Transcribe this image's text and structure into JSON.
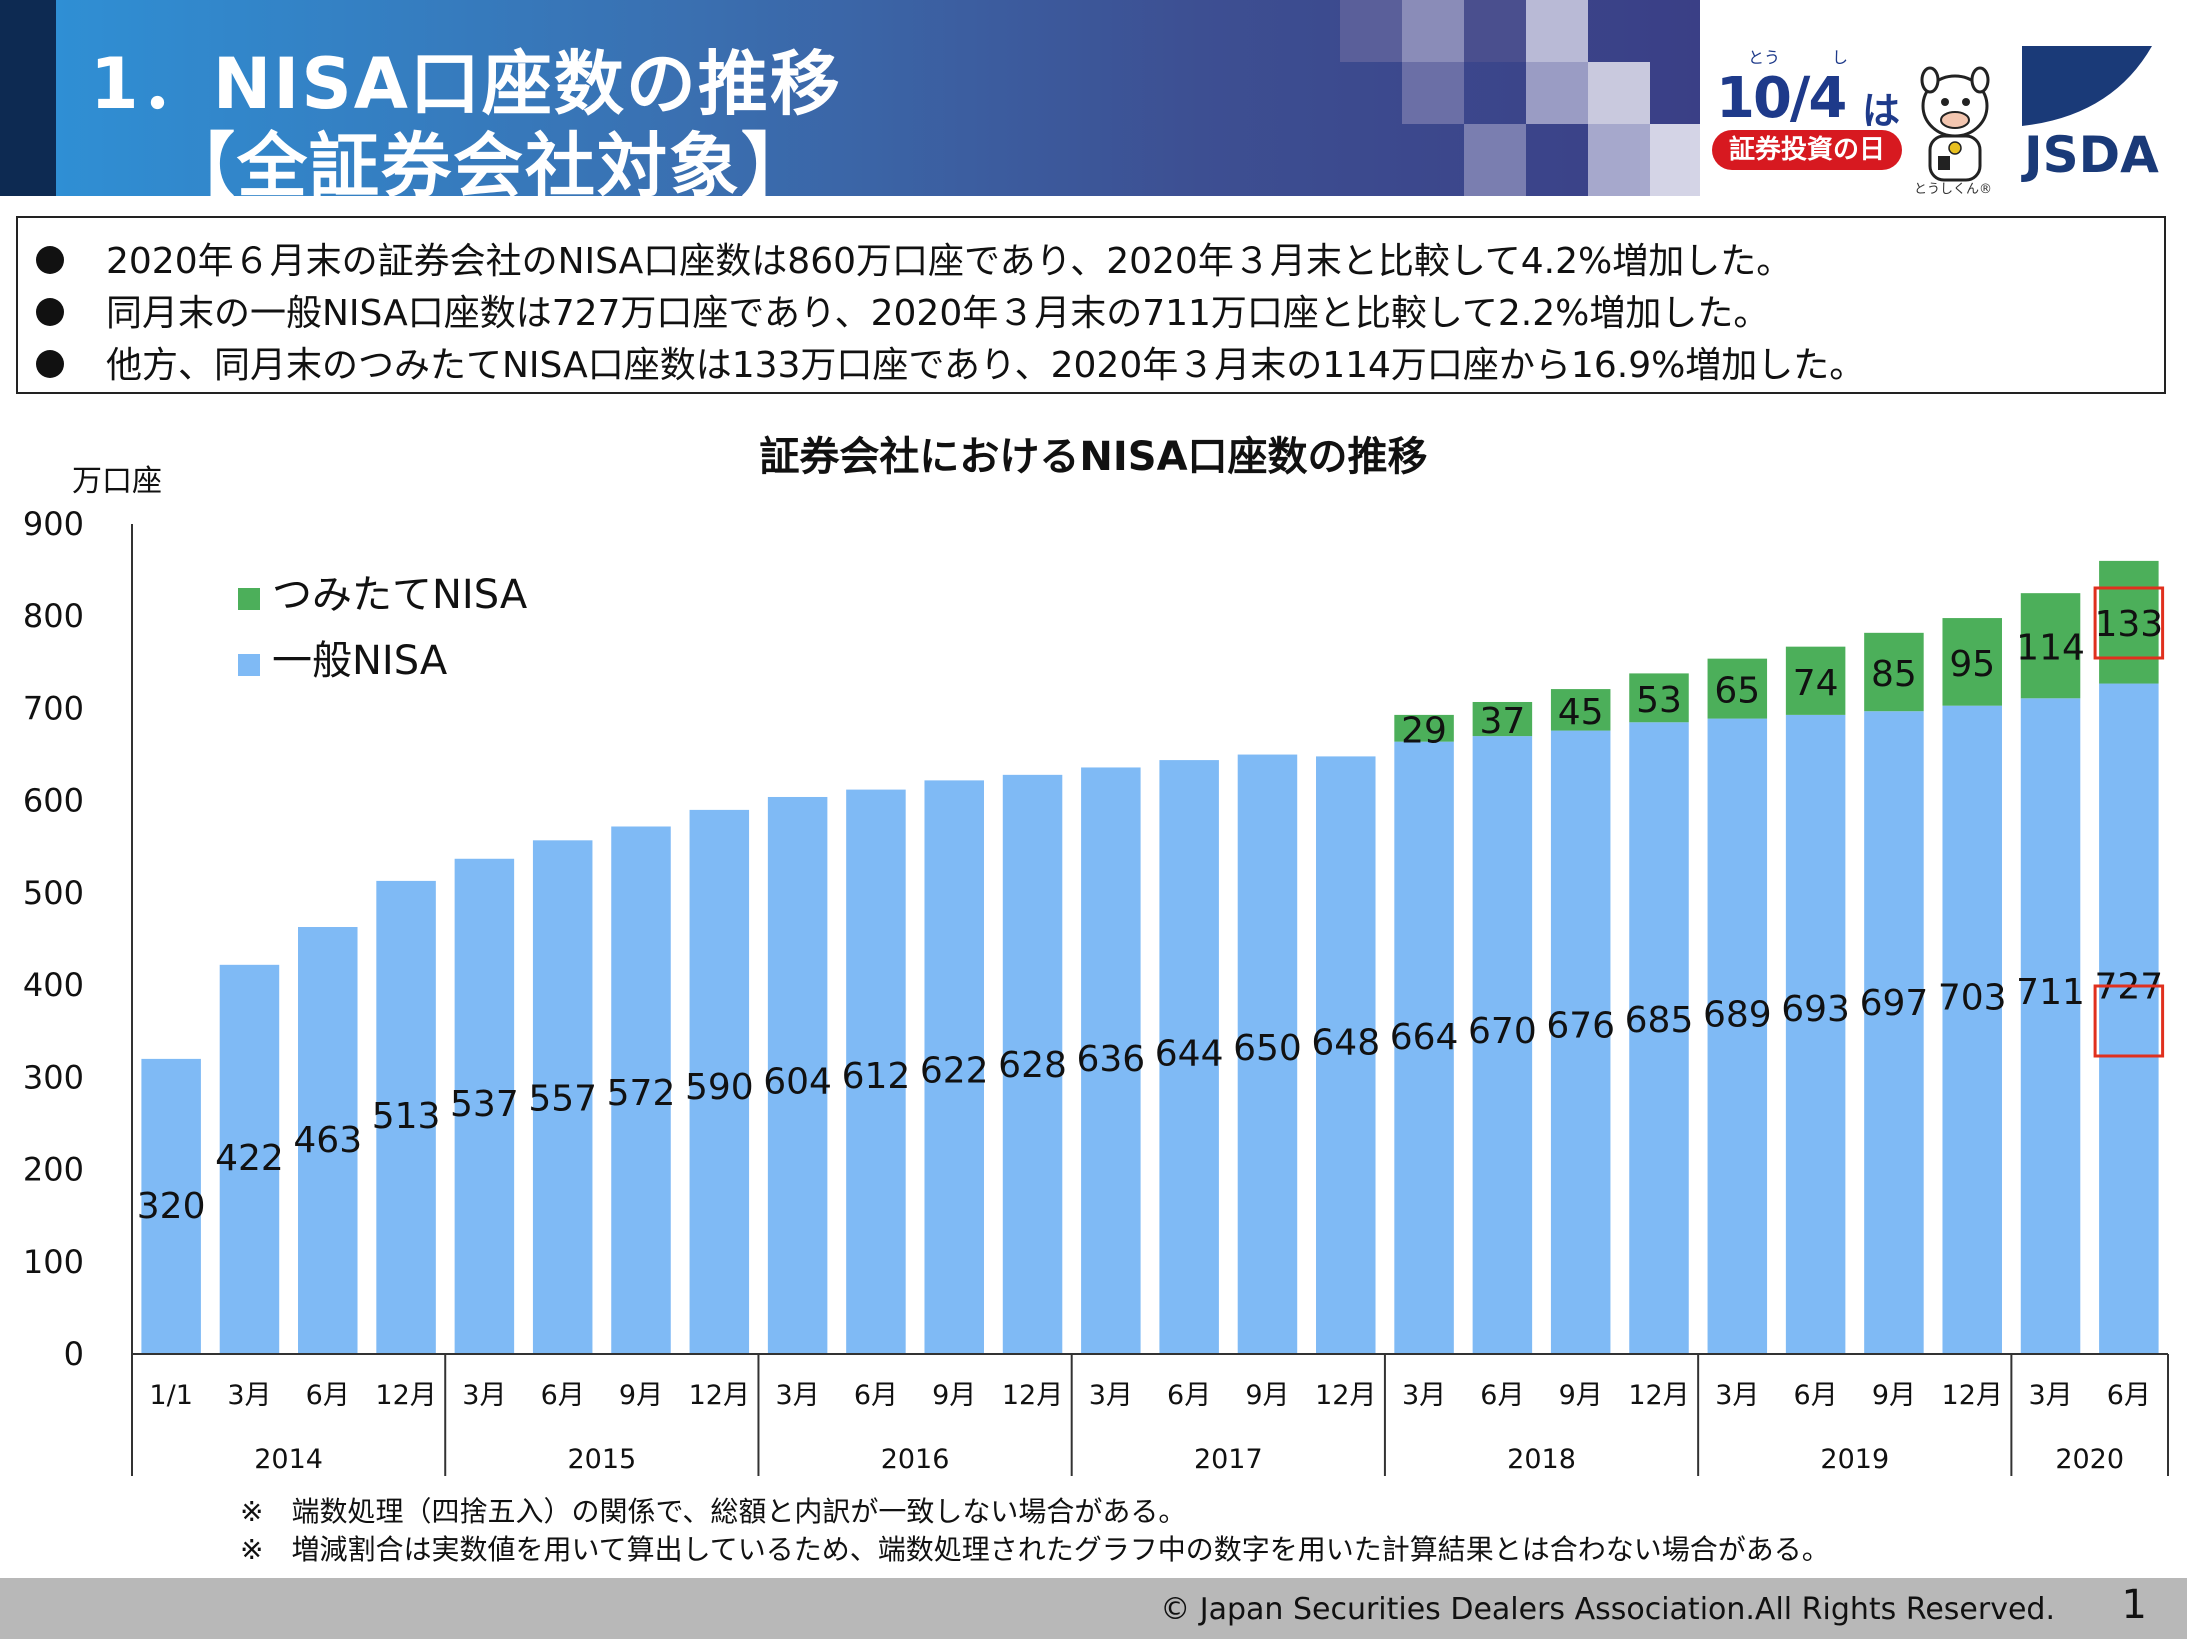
{
  "header": {
    "title_line1": "1．NISA口座数の推移",
    "title_line2": "【全証券会社対象】",
    "logo_day": {
      "big": "10/4",
      "ha": "は",
      "ruby_to": "とう",
      "ruby_shi": "し",
      "badge": "証券投資の日",
      "mascot": "とうしくん®"
    },
    "jsda_logo": "JSDA"
  },
  "summary": [
    "2020年６月末の証券会社のNISA口座数は860万口座であり、2020年３月末と比較して4.2%増加した。",
    "同月末の一般NISA口座数は727万口座であり、2020年３月末の711万口座と比較して2.2%増加した。",
    "他方、同月末のつみたてNISA口座数は133万口座であり、2020年３月末の114万口座から16.9%増加した。"
  ],
  "chart_data": {
    "type": "bar",
    "stacked": true,
    "title": "証券会社におけるNISA口座数の推移",
    "ylabel": "万口座",
    "ylim": [
      0,
      900
    ],
    "yticks": [
      0,
      100,
      200,
      300,
      400,
      500,
      600,
      700,
      800,
      900
    ],
    "categories": [
      "1/1",
      "3月",
      "6月",
      "12月",
      "3月",
      "6月",
      "9月",
      "12月",
      "3月",
      "6月",
      "9月",
      "12月",
      "3月",
      "6月",
      "9月",
      "12月",
      "3月",
      "6月",
      "9月",
      "12月",
      "3月",
      "6月",
      "9月",
      "12月",
      "3月",
      "6月"
    ],
    "year_groups": [
      {
        "label": "2014",
        "count": 4
      },
      {
        "label": "2015",
        "count": 4
      },
      {
        "label": "2016",
        "count": 4
      },
      {
        "label": "2017",
        "count": 4
      },
      {
        "label": "2018",
        "count": 4
      },
      {
        "label": "2019",
        "count": 4
      },
      {
        "label": "2020",
        "count": 2
      }
    ],
    "series": [
      {
        "name": "一般NISA",
        "color": "#7fbaf5",
        "values": [
          320,
          422,
          463,
          513,
          537,
          557,
          572,
          590,
          604,
          612,
          622,
          628,
          636,
          644,
          650,
          648,
          664,
          670,
          676,
          685,
          689,
          693,
          697,
          703,
          711,
          727
        ]
      },
      {
        "name": "つみたてNISA",
        "color": "#4caf5a",
        "values": [
          0,
          0,
          0,
          0,
          0,
          0,
          0,
          0,
          0,
          0,
          0,
          0,
          0,
          0,
          0,
          0,
          29,
          37,
          45,
          53,
          65,
          74,
          85,
          95,
          114,
          133
        ]
      }
    ],
    "legend": [
      "つみたてNISA",
      "一般NISA"
    ],
    "legend_position": "top-left",
    "highlighted_labels": [
      "727",
      "133"
    ],
    "highlight_color": "#e0301e"
  },
  "notes": [
    "※　端数処理（四捨五入）の関係で、総額と内訳が一致しない場合がある。",
    "※　増減割合は実数値を用いて算出しているため、端数処理されたグラフ中の数字を用いた計算結果とは合わない場合がある。"
  ],
  "footer": {
    "copyright": "© Japan Securities Dealers Association.All Rights Reserved.",
    "page": "1"
  }
}
